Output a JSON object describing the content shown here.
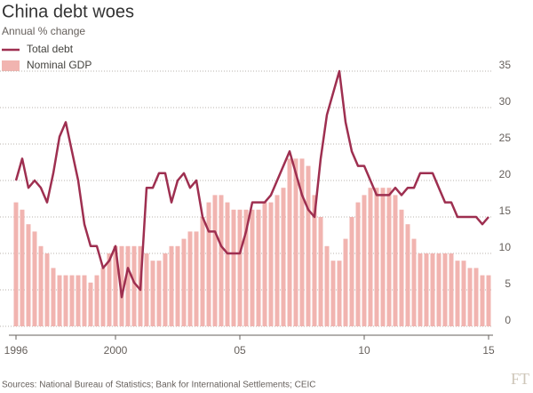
{
  "chart_data": {
    "type": "bar-line",
    "title": "China debt woes",
    "subtitle": "Annual % change",
    "source": "Sources: National Bureau of Statistics; Bank for International Settlements; CEIC",
    "categories": [
      "1996",
      null,
      null,
      null,
      null,
      null,
      null,
      null,
      null,
      null,
      null,
      null,
      null,
      null,
      null,
      null,
      "2000",
      null,
      null,
      null,
      null,
      null,
      null,
      null,
      null,
      null,
      null,
      null,
      null,
      null,
      null,
      null,
      null,
      null,
      null,
      null,
      "05",
      null,
      null,
      null,
      null,
      null,
      null,
      null,
      null,
      null,
      null,
      null,
      null,
      null,
      null,
      null,
      null,
      null,
      null,
      null,
      "10",
      null,
      null,
      null,
      null,
      null,
      null,
      null,
      null,
      null,
      null,
      null,
      null,
      null,
      null,
      null,
      null,
      null,
      null,
      null,
      "15"
    ],
    "series": [
      {
        "name": "Total debt",
        "type": "line",
        "color": "#9e2f50",
        "values": [
          20,
          23,
          19,
          20,
          19,
          17,
          21,
          26,
          28,
          24,
          20,
          14,
          11,
          11,
          8,
          9,
          11,
          4,
          8,
          6,
          5,
          19,
          19,
          21,
          21,
          17,
          20,
          21,
          19,
          20,
          15,
          13,
          13,
          11,
          10,
          10,
          10,
          13,
          17,
          17,
          17,
          18,
          20,
          22,
          24,
          21,
          18,
          16,
          15,
          23,
          29,
          32,
          35,
          28,
          24,
          22,
          22,
          20,
          18,
          18,
          18,
          19,
          18,
          19,
          19,
          21,
          21,
          21,
          19,
          17,
          17,
          15,
          15,
          15,
          15,
          14,
          15
        ]
      },
      {
        "name": "Nominal GDP",
        "type": "bar",
        "color": "#f1b4b0",
        "values": [
          17,
          16,
          14,
          13,
          11,
          10,
          8,
          7,
          7,
          7,
          7,
          7,
          6,
          7,
          8,
          10,
          11,
          11,
          11,
          11,
          11,
          10,
          9,
          9,
          10,
          11,
          11,
          12,
          13,
          13,
          15,
          17,
          18,
          18,
          17,
          16,
          16,
          16,
          16,
          16,
          17,
          17,
          18,
          19,
          23,
          23,
          23,
          22,
          18,
          15,
          11,
          9,
          9,
          12,
          15,
          17,
          18,
          19,
          19,
          19,
          19,
          18,
          16,
          14,
          12,
          10,
          10,
          10,
          10,
          10,
          10,
          9,
          9,
          8,
          8,
          7,
          7
        ]
      }
    ],
    "ylim": [
      0,
      35
    ],
    "yticks": [
      0,
      5,
      10,
      15,
      20,
      25,
      30,
      35
    ],
    "grid": true
  }
}
